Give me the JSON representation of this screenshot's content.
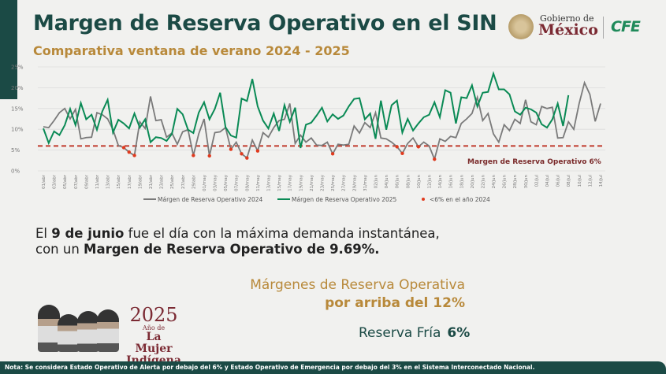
{
  "header": {
    "title": "Margen de Reserva Operativo en el SIN",
    "subtitle": "Comparativa ventana de verano 2024 - 2025"
  },
  "logos": {
    "gobierno_line1": "Gobierno de",
    "gobierno_line2": "México",
    "cfe": "CFE"
  },
  "chart_data": {
    "type": "line",
    "title": "",
    "xlabel": "",
    "ylabel": "",
    "ylim": [
      0,
      25
    ],
    "yticks": [
      "0%",
      "5%",
      "10%",
      "15%",
      "20%",
      "25%"
    ],
    "grid": true,
    "legend_position": "bottom",
    "x_tick_labels": [
      "01/abr",
      "03/abr",
      "05/abr",
      "07/abr",
      "09/abr",
      "11/abr",
      "13/abr",
      "15/abr",
      "17/abr",
      "19/abr",
      "21/abr",
      "23/abr",
      "25/abr",
      "27/abr",
      "29/abr",
      "01/may",
      "03/may",
      "05/may",
      "07/may",
      "09/may",
      "11/may",
      "13/may",
      "15/may",
      "17/may",
      "19/may",
      "21/may",
      "23/may",
      "25/may",
      "27/may",
      "29/may",
      "31/may",
      "02/jun",
      "04/jun",
      "06/jun",
      "08/jun",
      "10/jun",
      "12/jun",
      "14/jun",
      "16/jun",
      "18/jun",
      "20/jun",
      "22/jun",
      "24/jun",
      "26/jun",
      "28/jun",
      "30/jun",
      "02/jul",
      "04/jul",
      "06/jul",
      "08/jul",
      "10/jul",
      "12/jul",
      "14/jul"
    ],
    "x_days_total": 105,
    "series": [
      {
        "name": "Márgen de Reserva Operativo 2024",
        "color": "#7a7a7a",
        "values": [
          10.6,
          10.4,
          12.1,
          14,
          15,
          12.5,
          14.8,
          7.7,
          8,
          8.1,
          14,
          13.5,
          12.5,
          9.9,
          6.1,
          5.6,
          4.5,
          3.7,
          11.8,
          10.2,
          17.9,
          12.1,
          12.3,
          8.1,
          9.1,
          6.4,
          9.4,
          9.9,
          3.7,
          8.9,
          12.5,
          3.6,
          9.2,
          9.4,
          10.4,
          5.2,
          6.9,
          4.1,
          3.1,
          7.4,
          4.8,
          9.2,
          8.1,
          10.4,
          12.1,
          12.4,
          16.2,
          6.6,
          8.6,
          6.9,
          7.9,
          6.2,
          6.1,
          6.9,
          4.1,
          6.4,
          6.2,
          6.4,
          10.8,
          9.1,
          11.6,
          10.4,
          14,
          7.9,
          7.7,
          6.9,
          5.8,
          4.2,
          6.6,
          7.9,
          5.8,
          6.9,
          6,
          2.8,
          7.7,
          7.1,
          8.3,
          8,
          11.4,
          12.5,
          13.8,
          17.7,
          12.1,
          13.8,
          8.9,
          6.9,
          11.1,
          9.7,
          12.4,
          11.4,
          17.1,
          11.8,
          11.1,
          15.5,
          15,
          15.3,
          7.9,
          8,
          11.8,
          10,
          16.2,
          21.2,
          18.4,
          11.9,
          16.2
        ]
      },
      {
        "name": "Márgen de Reserva Operativo 2025",
        "color": "#0a8a55",
        "values": [
          10.2,
          6.7,
          9.5,
          8.6,
          11,
          14.9,
          11,
          16.3,
          12.4,
          13.5,
          9.9,
          14.3,
          17.1,
          9.2,
          12.3,
          11.4,
          10.2,
          13.8,
          10.4,
          12.4,
          6.9,
          8.1,
          7.9,
          7.2,
          8.9,
          14.9,
          13.6,
          9.9,
          9.1,
          14,
          16.5,
          12.4,
          14.9,
          18.8,
          10.5,
          8.5,
          8,
          17.4,
          16.8,
          22.1,
          15.5,
          12.1,
          10.2,
          13.8,
          9.6,
          15.8,
          11.8,
          15.2,
          5.5,
          11.1,
          11.6,
          13.3,
          15.2,
          11.9,
          13.6,
          12.5,
          13.3,
          15.5,
          17.3,
          17.5,
          12.4,
          13.8,
          7.7,
          16.9,
          9.9,
          15.8,
          16.9,
          9.2,
          12.5,
          9.7,
          11.4,
          12.9,
          13.5,
          16.5,
          12.9,
          19.4,
          18.8,
          11.4,
          17.7,
          17.5,
          20.6,
          15.5,
          18.8,
          19,
          23.4,
          19.6,
          19.6,
          18.4,
          14.3,
          13.5,
          15.2,
          14.8,
          14,
          11.2,
          10.4,
          12.4,
          16.2,
          10.8,
          18.2
        ]
      },
      {
        "name": "<6% en el año 2024",
        "color": "#e03a1e",
        "type": "scatter",
        "threshold": 6
      }
    ],
    "reference_line": {
      "value": 6,
      "label": "Margen de Reserva Operativo 6%",
      "color": "#c0392b"
    }
  },
  "message": {
    "p1": "El ",
    "p1_bold": "9 de junio",
    "p2": " fue el día con la máxima demanda instantánea,",
    "p3": "con un ",
    "p3_bold": "Margen de Reserva Operativo de 9.69%."
  },
  "margins": {
    "line1": "Márgenes de Reserva Operativa",
    "line2": "por arriba del 12%"
  },
  "reserve": {
    "label": "Reserva Fría",
    "value": "6%"
  },
  "badge": {
    "year": "2025",
    "line1": "Año de",
    "line2": "La Mujer",
    "line3": "Indígena"
  },
  "footer": {
    "note": "Nota: Se considera Estado Operativo de Alerta por debajo del 6% y Estado Operativo de Emergencia por debajo del 3% en el Sistema Interconectado Nacional."
  }
}
